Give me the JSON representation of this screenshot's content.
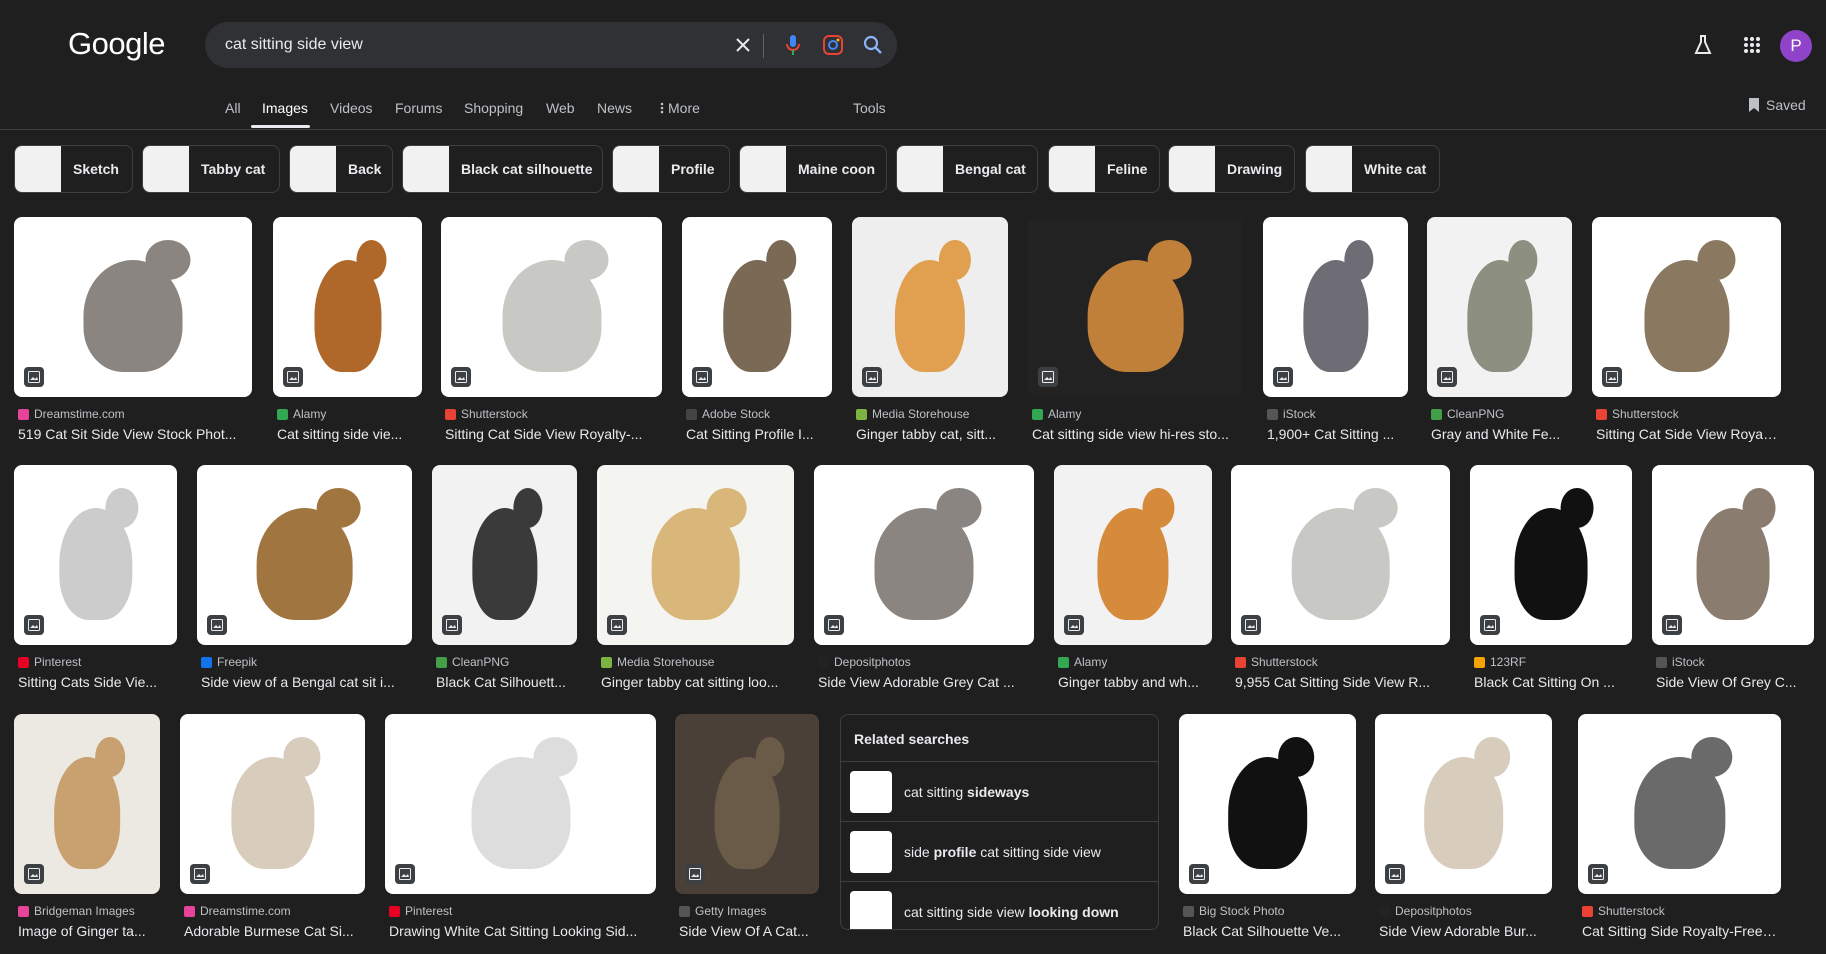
{
  "header": {
    "logo": "Google",
    "query": "cat sitting side view",
    "avatar_initial": "P"
  },
  "tabs": [
    {
      "label": "All"
    },
    {
      "label": "Images"
    },
    {
      "label": "Videos"
    },
    {
      "label": "Forums"
    },
    {
      "label": "Shopping"
    },
    {
      "label": "Web"
    },
    {
      "label": "News"
    },
    {
      "label": "More"
    },
    {
      "label": "Tools"
    }
  ],
  "saved_label": "Saved",
  "chips": [
    "Sketch",
    "Tabby cat",
    "Back",
    "Black cat silhouette",
    "Profile",
    "Maine coon",
    "Bengal cat",
    "Feline",
    "Drawing",
    "White cat"
  ],
  "colors": {
    "accent_avatar": "#8e43c9",
    "background": "#1f1f1f",
    "search_bg": "#303134"
  },
  "results": [
    {
      "source": "Dreamstime.com",
      "title": "519 Cat Sit Side View Stock Phot...",
      "fav": "#e8439b",
      "cat": "#8a8580",
      "bg": "#ffffff"
    },
    {
      "source": "Alamy",
      "title": "Cat sitting side vie...",
      "fav": "#32a852",
      "cat": "#b0682a",
      "bg": "#ffffff"
    },
    {
      "source": "Shutterstock",
      "title": "Sitting Cat Side View Royalty-...",
      "fav": "#ea4335",
      "cat": "#c8c8c4",
      "bg": "#ffffff"
    },
    {
      "source": "Adobe Stock",
      "title": "Cat Sitting Profile I...",
      "fav": "#444444",
      "cat": "#7a6a55",
      "bg": "#ffffff"
    },
    {
      "source": "Media Storehouse",
      "title": "Ginger tabby cat, sitt...",
      "fav": "#7cb342",
      "cat": "#e0a050",
      "bg": "#eeeeee"
    },
    {
      "source": "Alamy",
      "title": "Cat sitting side view hi-res sto...",
      "fav": "#32a852",
      "cat": "#c0803a",
      "bg": "#222222"
    },
    {
      "source": "iStock",
      "title": "1,900+ Cat Sitting ...",
      "fav": "#555555",
      "cat": "#6e6c74",
      "bg": "#ffffff"
    },
    {
      "source": "CleanPNG",
      "title": "Gray and White Fe...",
      "fav": "#43a047",
      "cat": "#8d8f80",
      "bg": "#f2f2f2"
    },
    {
      "source": "Shutterstock",
      "title": "Sitting Cat Side View Royalty-...",
      "fav": "#ea4335",
      "cat": "#8a7860",
      "bg": "#ffffff"
    },
    {
      "source": "Pinterest",
      "title": "Sitting Cats Side Vie...",
      "fav": "#e60023",
      "cat": "#cccccc",
      "bg": "#ffffff"
    },
    {
      "source": "Freepik",
      "title": "Side view of a Bengal cat sit i...",
      "fav": "#1273eb",
      "cat": "#a07540",
      "bg": "#ffffff"
    },
    {
      "source": "CleanPNG",
      "title": "Black Cat Silhouett...",
      "fav": "#43a047",
      "cat": "#3a3a3a",
      "bg": "#f2f2f2"
    },
    {
      "source": "Media Storehouse",
      "title": "Ginger tabby cat sitting loo...",
      "fav": "#7cb342",
      "cat": "#d9b77a",
      "bg": "#f4f4f0"
    },
    {
      "source": "Depositphotos",
      "title": "Side View Adorable Grey Cat ...",
      "fav": "#222222",
      "cat": "#8a8580",
      "bg": "#ffffff"
    },
    {
      "source": "Alamy",
      "title": "Ginger tabby and wh...",
      "fav": "#32a852",
      "cat": "#d58a3c",
      "bg": "#f2f2f2"
    },
    {
      "source": "Shutterstock",
      "title": "9,955 Cat Sitting Side View R...",
      "fav": "#ea4335",
      "cat": "#c8c8c4",
      "bg": "#ffffff"
    },
    {
      "source": "123RF",
      "title": "Black Cat Sitting On ...",
      "fav": "#f4a300",
      "cat": "#111111",
      "bg": "#ffffff"
    },
    {
      "source": "iStock",
      "title": "Side View Of Grey C...",
      "fav": "#555555",
      "cat": "#8a7d70",
      "bg": "#ffffff"
    },
    {
      "source": "Bridgeman Images",
      "title": "Image of Ginger ta...",
      "fav": "#e8439b",
      "cat": "#c9a070",
      "bg": "#ece8e2"
    },
    {
      "source": "Dreamstime.com",
      "title": "Adorable Burmese Cat Si...",
      "fav": "#e8439b",
      "cat": "#d8ccbc",
      "bg": "#ffffff"
    },
    {
      "source": "Pinterest",
      "title": "Drawing White Cat Sitting Looking Sid...",
      "fav": "#e60023",
      "cat": "#dddddd",
      "bg": "#ffffff"
    },
    {
      "source": "Getty Images",
      "title": "Side View Of A Cat...",
      "fav": "#555555",
      "cat": "#6a5a48",
      "bg": "#4a4038"
    },
    {
      "source": "Big Stock Photo",
      "title": "Black Cat Silhouette Ve...",
      "fav": "#555555",
      "cat": "#111111",
      "bg": "#ffffff"
    },
    {
      "source": "Depositphotos",
      "title": "Side View Adorable Bur...",
      "fav": "#222222",
      "cat": "#d8ccbc",
      "bg": "#ffffff"
    },
    {
      "source": "Shutterstock",
      "title": "Cat Sitting Side Royalty-Free Ph...",
      "fav": "#ea4335",
      "cat": "#6a6a6a",
      "bg": "#ffffff"
    }
  ],
  "related": {
    "heading": "Related searches",
    "items": [
      {
        "prefix": "cat sitting ",
        "bold": "sideways",
        "suffix": ""
      },
      {
        "prefix": "side ",
        "bold": "profile",
        "suffix": " cat sitting side view"
      },
      {
        "prefix": "cat sitting side view ",
        "bold": "looking down",
        "suffix": ""
      }
    ]
  }
}
